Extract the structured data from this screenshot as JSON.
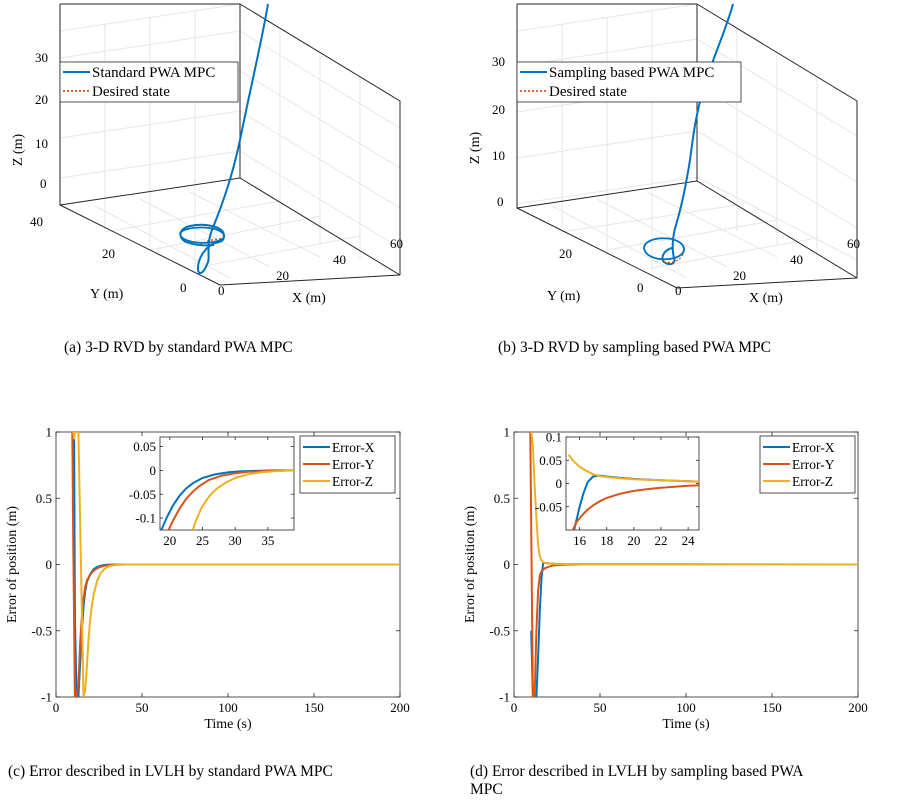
{
  "captions": {
    "a": "(a)  3-D RVD by standard PWA MPC",
    "b": "(b)  3-D RVD by sampling based PWA MPC",
    "c": "(c)  Error described in LVLH by standard PWA MPC",
    "d1": "(d)  Error described in LVLH by sampling based PWA",
    "d2": "MPC"
  },
  "colors": {
    "x": "#0072BD",
    "y": "#D95319",
    "z": "#EDB120",
    "traj": "#0072BD",
    "desired": "#D95319"
  },
  "chart_data": [
    {
      "type": "line3d",
      "id": "a",
      "zlabel": "Z (m)",
      "ylabel": "Y (m)",
      "xlabel": "X (m)",
      "zticks": [
        "0",
        "10",
        "20",
        "30"
      ],
      "yticks": [
        "0",
        "20",
        "40"
      ],
      "xticks": [
        "0",
        "20",
        "40",
        "60"
      ],
      "legend": [
        "Standard PWA MPC",
        "Desired state"
      ],
      "legend_position": "top-left"
    },
    {
      "type": "line3d",
      "id": "b",
      "zlabel": "Z (m)",
      "ylabel": "Y (m)",
      "xlabel": "X (m)",
      "zticks": [
        "0",
        "10",
        "20",
        "30"
      ],
      "yticks": [
        "0",
        "20"
      ],
      "xticks": [
        "0",
        "20",
        "40",
        "60"
      ],
      "legend": [
        "Sampling based PWA MPC",
        "Desired state"
      ],
      "legend_position": "top-left"
    },
    {
      "type": "line",
      "id": "c",
      "xlabel": "Time (s)",
      "ylabel": "Error of position (m)",
      "xlim": [
        0,
        200
      ],
      "ylim": [
        -1,
        1
      ],
      "xticks": [
        0,
        50,
        100,
        150,
        200
      ],
      "yticks": [
        -1,
        -0.5,
        0,
        0.5,
        1
      ],
      "ytick_labels": [
        "-1",
        "-0.5",
        "0",
        "0.5",
        "1"
      ],
      "legend_position": "top-right",
      "series": [
        {
          "name": "Error-X",
          "x": [
            10.5,
            11,
            12,
            13,
            14,
            15,
            16,
            17,
            18,
            20,
            22,
            24,
            26,
            28,
            30,
            35,
            40,
            200
          ],
          "y": [
            1,
            -0.4,
            -1,
            -1,
            -0.75,
            -0.5,
            -0.32,
            -0.2,
            -0.13,
            -0.07,
            -0.035,
            -0.018,
            -0.009,
            -0.004,
            -0.002,
            0,
            0,
            0
          ]
        },
        {
          "name": "Error-Y",
          "x": [
            9.5,
            10,
            11,
            12,
            13,
            14,
            15,
            16,
            17,
            18,
            20,
            22,
            24,
            26,
            28,
            30,
            35,
            40,
            200
          ],
          "y": [
            1,
            0.2,
            -1,
            -1,
            -0.9,
            -0.6,
            -0.4,
            -0.26,
            -0.17,
            -0.12,
            -0.075,
            -0.045,
            -0.028,
            -0.017,
            -0.01,
            -0.006,
            -0.002,
            0,
            0
          ]
        },
        {
          "name": "Error-Z",
          "x": [
            10,
            10.5,
            11,
            13,
            16,
            17,
            18,
            19,
            20,
            21,
            22,
            24,
            26,
            28,
            30,
            32,
            35,
            40,
            200
          ],
          "y": [
            1,
            0.95,
            1,
            1,
            -1,
            -0.95,
            -0.75,
            -0.55,
            -0.4,
            -0.3,
            -0.22,
            -0.12,
            -0.065,
            -0.035,
            -0.018,
            -0.009,
            -0.003,
            0,
            0
          ]
        }
      ],
      "inset": {
        "xlim": [
          18.5,
          39
        ],
        "ylim": [
          -0.125,
          0.07
        ],
        "xticks": [
          20,
          25,
          30,
          35
        ],
        "yticks": [
          -0.1,
          -0.05,
          0,
          0.05
        ],
        "ytick_labels": [
          "-0.1",
          "-0.05",
          "0",
          "0.05"
        ],
        "series": [
          {
            "name": "Error-X",
            "x": [
              18.7,
              19.5,
              20.5,
              21.5,
              22.5,
              23.5,
              25,
              27,
              29,
              31,
              33,
              36,
              39
            ],
            "y": [
              -0.125,
              -0.1,
              -0.073,
              -0.053,
              -0.038,
              -0.027,
              -0.016,
              -0.008,
              -0.004,
              -0.002,
              -0.001,
              0,
              0
            ]
          },
          {
            "name": "Error-Y",
            "x": [
              19.8,
              20.5,
              21.5,
              22.5,
              23.5,
              24.5,
              26,
              28,
              30,
              32,
              35,
              39
            ],
            "y": [
              -0.125,
              -0.105,
              -0.08,
              -0.06,
              -0.045,
              -0.033,
              -0.02,
              -0.011,
              -0.006,
              -0.003,
              -0.001,
              0
            ]
          },
          {
            "name": "Error-Z",
            "x": [
              23.5,
              24,
              24.8,
              25.6,
              26.5,
              27.5,
              28.5,
              30,
              32,
              34,
              36,
              39
            ],
            "y": [
              -0.125,
              -0.105,
              -0.08,
              -0.062,
              -0.047,
              -0.035,
              -0.026,
              -0.016,
              -0.008,
              -0.004,
              -0.002,
              0
            ]
          }
        ]
      }
    },
    {
      "type": "line",
      "id": "d",
      "xlabel": "Time (s)",
      "ylabel": "Error of position (m)",
      "xlim": [
        0,
        200
      ],
      "ylim": [
        -1,
        1
      ],
      "xticks": [
        0,
        50,
        100,
        150,
        200
      ],
      "yticks": [
        -1,
        -0.5,
        0,
        0.5,
        1
      ],
      "ytick_labels": [
        "-1",
        "-0.5",
        "0",
        "0.5",
        "1"
      ],
      "legend_position": "top-right",
      "series": [
        {
          "name": "Error-X",
          "x": [
            10,
            11,
            12,
            13,
            14,
            15,
            16,
            17,
            18,
            20,
            25,
            30,
            200
          ],
          "y": [
            -0.5,
            -1,
            -1,
            -1,
            -0.7,
            -0.35,
            -0.1,
            0.015,
            0.012,
            0.008,
            0.004,
            0.002,
            0
          ]
        },
        {
          "name": "Error-Y",
          "x": [
            9.5,
            10,
            11,
            12,
            13,
            14,
            15,
            16,
            18,
            20,
            22,
            24,
            30,
            40,
            200
          ],
          "y": [
            1,
            0.3,
            -1,
            -1,
            -0.5,
            -0.2,
            -0.08,
            -0.052,
            -0.028,
            -0.017,
            -0.01,
            -0.006,
            -0.002,
            0,
            0
          ]
        },
        {
          "name": "Error-Z",
          "x": [
            9.5,
            10,
            11,
            12,
            13,
            14,
            15,
            16,
            17,
            18,
            20,
            22,
            24,
            30,
            40,
            200
          ],
          "y": [
            1,
            1,
            0.9,
            0.6,
            0.35,
            0.15,
            0.06,
            0.03,
            0.018,
            0.013,
            0.009,
            0.006,
            0.004,
            0.002,
            0,
            0
          ]
        }
      ],
      "inset": {
        "xlim": [
          15,
          24.8
        ],
        "ylim": [
          -0.1,
          0.1
        ],
        "xticks": [
          16,
          18,
          20,
          22,
          24
        ],
        "yticks": [
          -0.05,
          0,
          0.05,
          0.1
        ],
        "ytick_labels": [
          "-0.05",
          "0",
          "0.05",
          "0.1"
        ],
        "series": [
          {
            "name": "Error-X",
            "x": [
              15.6,
              15.8,
              16,
              16.3,
              16.6,
              17,
              17.5,
              18,
              19,
              20,
              22,
              24,
              24.8
            ],
            "y": [
              -0.1,
              -0.075,
              -0.05,
              -0.02,
              0.003,
              0.015,
              0.017,
              0.015,
              0.012,
              0.01,
              0.007,
              0.005,
              0.004
            ]
          },
          {
            "name": "Error-Y",
            "x": [
              15.5,
              15.8,
              16.2,
              16.6,
              17,
              17.5,
              18,
              19,
              20,
              21,
              22,
              23,
              24,
              24.8
            ],
            "y": [
              -0.1,
              -0.082,
              -0.068,
              -0.056,
              -0.047,
              -0.038,
              -0.031,
              -0.022,
              -0.016,
              -0.012,
              -0.009,
              -0.007,
              -0.005,
              -0.004
            ]
          },
          {
            "name": "Error-Z",
            "x": [
              15.2,
              15.5,
              16,
              16.5,
              17,
              17.5,
              18,
              19,
              20,
              21,
              22,
              23,
              24,
              24.8
            ],
            "y": [
              0.062,
              0.05,
              0.036,
              0.027,
              0.02,
              0.016,
              0.014,
              0.011,
              0.009,
              0.008,
              0.007,
              0.006,
              0.005,
              0.004
            ]
          }
        ]
      }
    }
  ]
}
